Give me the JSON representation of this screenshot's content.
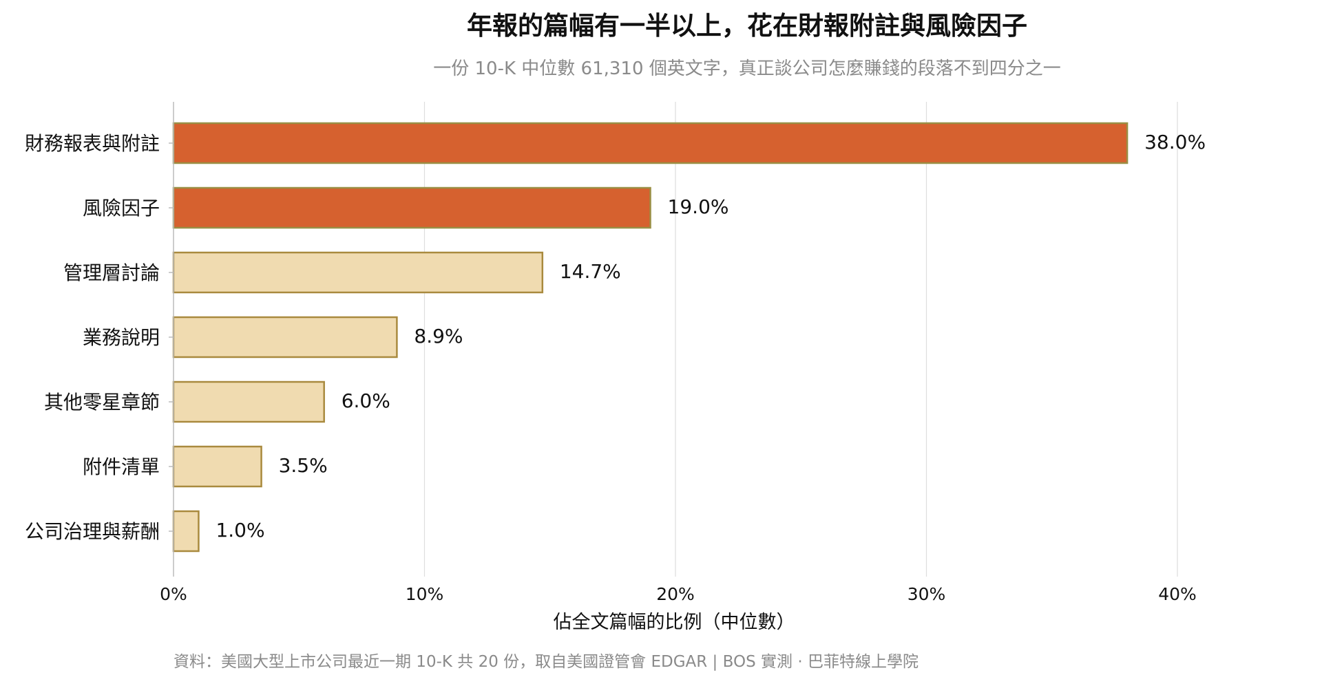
{
  "chart_data": {
    "type": "bar",
    "orientation": "horizontal",
    "title": "年報的篇幅有一半以上，花在財報附註與風險因子",
    "subtitle": "一份 10-K 中位數 61,310 個英文字，真正談公司怎麼賺錢的段落不到四分之一",
    "xlabel": "佔全文篇幅的比例（中位數）",
    "ylabel": "",
    "xlim": [
      0,
      42
    ],
    "x_ticks": [
      0,
      10,
      20,
      30,
      40
    ],
    "x_tick_labels": [
      "0%",
      "10%",
      "20%",
      "30%",
      "40%"
    ],
    "grid": "vertical",
    "categories": [
      "財務報表與附註",
      "風險因子",
      "管理層討論",
      "業務說明",
      "其他零星章節",
      "附件清單",
      "公司治理與薪酬"
    ],
    "values": [
      38.0,
      19.0,
      14.7,
      8.9,
      6.0,
      3.5,
      1.0
    ],
    "value_labels": [
      "38.0%",
      "19.0%",
      "14.7%",
      "8.9%",
      "6.0%",
      "3.5%",
      "1.0%"
    ],
    "highlighted": [
      true,
      true,
      false,
      false,
      false,
      false,
      false
    ],
    "colors": {
      "highlight_fill": "#D6612F",
      "highlight_stroke": "#9A8F45",
      "base_fill": "#F0DBB0",
      "base_stroke": "#A98A3E",
      "grid": "#DDDDDD",
      "axis": "#BBBBBB",
      "title": "#111111",
      "subtitle": "#8A8A8A",
      "text": "#111111",
      "source": "#8A8A8A"
    },
    "source": "資料：美國大型上市公司最近一期 10-K 共 20 份，取自美國證管會 EDGAR | BOS 實測 ·  巴菲特線上學院"
  }
}
